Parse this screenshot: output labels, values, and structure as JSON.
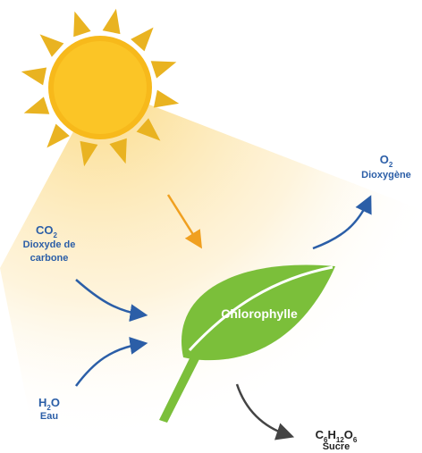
{
  "diagram": {
    "co2": {
      "formula": [
        "CO",
        "2"
      ],
      "name": [
        "Dioxyde de",
        "carbone"
      ]
    },
    "o2": {
      "formula": [
        "O",
        "2"
      ],
      "name": [
        "Dioxygène"
      ]
    },
    "h2o": {
      "formula": [
        "H",
        "2",
        "O"
      ],
      "name": [
        "Eau"
      ]
    },
    "sugar": {
      "formula": [
        "C",
        "6",
        "H",
        "12",
        "O",
        "6"
      ],
      "name": [
        "Sucre"
      ]
    },
    "leaf": {
      "label": "Chlorophylle"
    }
  }
}
